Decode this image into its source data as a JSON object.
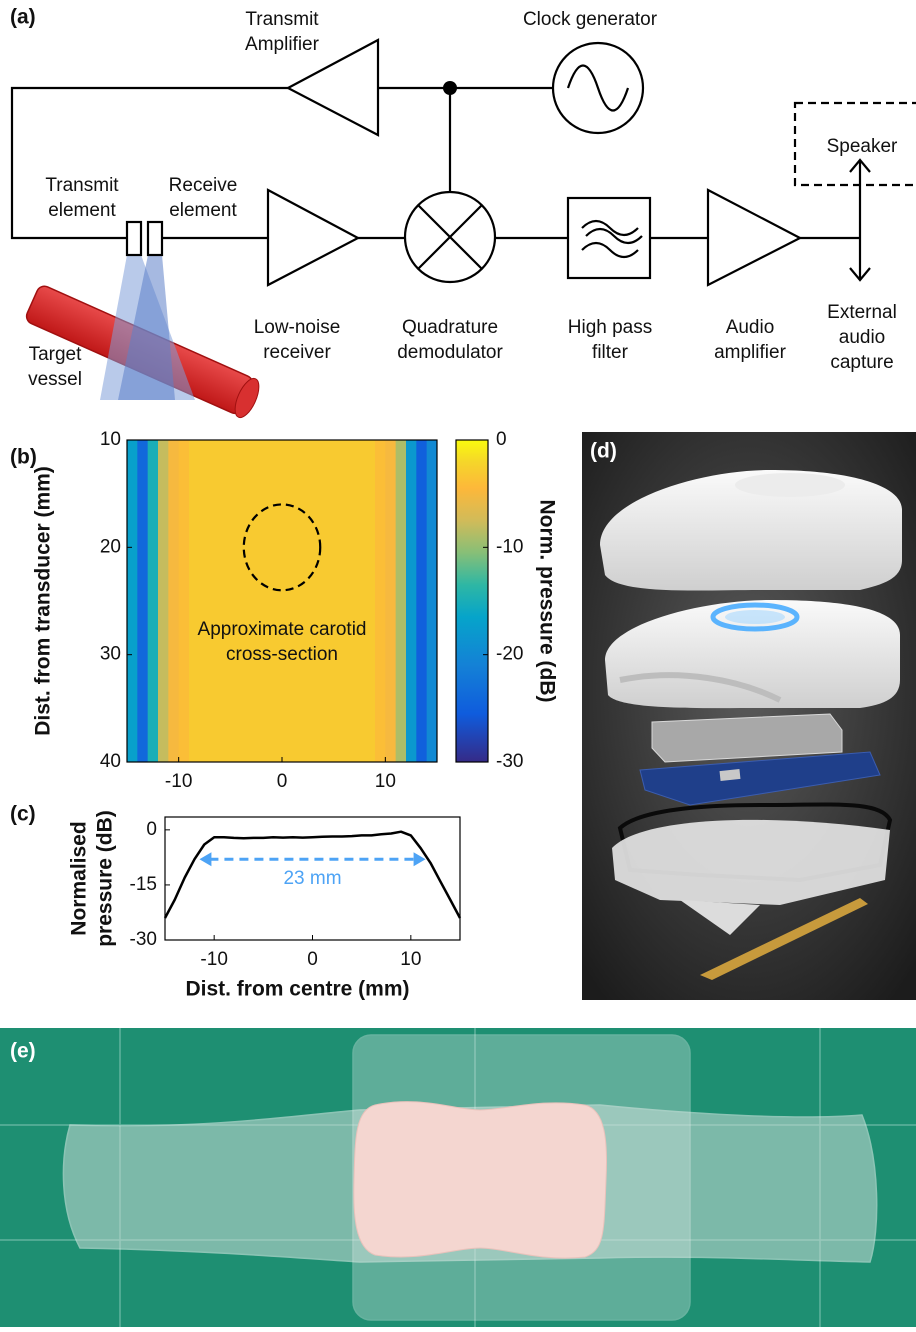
{
  "figure": {
    "panel_labels": [
      "(a)",
      "(b)",
      "(c)",
      "(d)",
      "(e)"
    ],
    "diagram": {
      "transmit_amplifier": [
        "Transmit",
        "Amplifier"
      ],
      "clock_generator": "Clock generator",
      "speaker": "Speaker",
      "transmit_element": [
        "Transmit",
        "element"
      ],
      "receive_element": [
        "Receive",
        "element"
      ],
      "low_noise_receiver": [
        "Low-noise",
        "receiver"
      ],
      "quadrature_demodulator": [
        "Quadrature",
        "demodulator"
      ],
      "high_pass_filter": [
        "High pass",
        "filter"
      ],
      "audio_amplifier": [
        "Audio",
        "amplifier"
      ],
      "external_audio_capture": [
        "External",
        "audio",
        "capture"
      ],
      "target_vessel": [
        "Target",
        "vessel"
      ]
    }
  },
  "chart_data": [
    {
      "type": "heatmap",
      "x": [
        -14.5,
        -13.5,
        -12.5,
        -11.5,
        -10.5,
        -9.5,
        -8.5,
        -7.5,
        -6.5,
        -5.5,
        -4.5,
        -3.5,
        -2.5,
        -1.5,
        -0.5,
        0.5,
        1.5,
        2.5,
        3.5,
        4.5,
        5.5,
        6.5,
        7.5,
        8.5,
        9.5,
        10.5,
        11.5,
        12.5,
        13.5,
        14.5
      ],
      "values": [
        -17,
        -24,
        -15,
        -8,
        -5,
        -4,
        -3,
        -3,
        -3,
        -3,
        -3,
        -3,
        -3,
        -3,
        -3,
        -3,
        -3,
        -3,
        -3,
        -3,
        -3,
        -3,
        -3,
        -3,
        -4,
        -5,
        -9,
        -18,
        -25,
        -20
      ],
      "xlim": [
        -15,
        15
      ],
      "ylim": [
        40,
        10
      ],
      "xticks": [
        -10,
        0,
        10
      ],
      "yticks": [
        10,
        20,
        30,
        40
      ],
      "ylabel": "Dist. from transducer (mm)",
      "colorbar": {
        "label": "Norm. pressure (dB)",
        "lim": [
          -30,
          0
        ],
        "ticks": [
          0,
          -10,
          -20,
          -30
        ]
      },
      "annotation": [
        "Approximate carotid",
        "cross-section"
      ],
      "region": {
        "x": 0,
        "y": 20,
        "rx": 3.7,
        "ry": 4
      }
    },
    {
      "type": "line",
      "x": [
        -15,
        -14,
        -13,
        -12,
        -11,
        -10,
        -9,
        -8,
        -7,
        -6,
        -5,
        -4,
        -3,
        -2,
        -1,
        0,
        1,
        2,
        3,
        4,
        5,
        6,
        7,
        8,
        9,
        10,
        11,
        12,
        13,
        14,
        15
      ],
      "values": [
        -24,
        -19,
        -13,
        -8,
        -4,
        -2,
        -2,
        -2.2,
        -2.3,
        -2.2,
        -2.2,
        -2,
        -2.1,
        -2,
        -2.1,
        -2,
        -1.9,
        -1.8,
        -1.8,
        -1.7,
        -1.5,
        -1.5,
        -1.2,
        -1,
        -0.5,
        -1.5,
        -5,
        -9,
        -14,
        -19,
        -24
      ],
      "color": "#000000",
      "xlim": [
        -15,
        15
      ],
      "ylim": [
        -30,
        3.5
      ],
      "xticks": [
        -10,
        0,
        10
      ],
      "yticks": [
        0,
        -15,
        -30
      ],
      "xlabel": "Dist. from centre (mm)",
      "ylabel": [
        "Normalised",
        "pressure (dB)"
      ],
      "annotation": {
        "text": "23 mm",
        "x": [
          -11.5,
          11.5
        ],
        "y": -8,
        "color": "#4da3f5"
      }
    }
  ]
}
